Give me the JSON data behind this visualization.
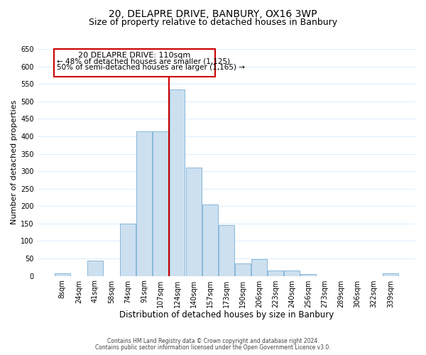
{
  "title": "20, DELAPRE DRIVE, BANBURY, OX16 3WP",
  "subtitle": "Size of property relative to detached houses in Banbury",
  "xlabel": "Distribution of detached houses by size in Banbury",
  "ylabel": "Number of detached properties",
  "bar_labels": [
    "8sqm",
    "24sqm",
    "41sqm",
    "58sqm",
    "74sqm",
    "91sqm",
    "107sqm",
    "124sqm",
    "140sqm",
    "157sqm",
    "173sqm",
    "190sqm",
    "206sqm",
    "223sqm",
    "240sqm",
    "256sqm",
    "273sqm",
    "289sqm",
    "306sqm",
    "322sqm",
    "339sqm"
  ],
  "bar_values": [
    8,
    0,
    44,
    0,
    150,
    415,
    415,
    535,
    310,
    205,
    145,
    35,
    48,
    15,
    15,
    5,
    0,
    0,
    0,
    0,
    8
  ],
  "bar_color": "#cce0f0",
  "bar_edge_color": "#8ab8d8",
  "highlight_index": 6,
  "vline_color": "#cc0000",
  "vline_x_index": 7,
  "ylim": [
    0,
    650
  ],
  "yticks": [
    0,
    50,
    100,
    150,
    200,
    250,
    300,
    350,
    400,
    450,
    500,
    550,
    600,
    650
  ],
  "annotation_title": "20 DELAPRE DRIVE: 110sqm",
  "annotation_line1": "← 48% of detached houses are smaller (1,125)",
  "annotation_line2": "50% of semi-detached houses are larger (1,165) →",
  "footer1": "Contains HM Land Registry data © Crown copyright and database right 2024.",
  "footer2": "Contains public sector information licensed under the Open Government Licence v3.0.",
  "background_color": "#ffffff",
  "grid_color": "#ddeeff",
  "title_fontsize": 10,
  "subtitle_fontsize": 9,
  "xlabel_fontsize": 8.5,
  "ylabel_fontsize": 8,
  "tick_fontsize": 7,
  "annotation_box_edge_color": "#cc0000",
  "annotation_box_face_color": "#ffffff",
  "annotation_title_fontsize": 8,
  "annotation_text_fontsize": 7.5,
  "footer_fontsize": 5.5
}
